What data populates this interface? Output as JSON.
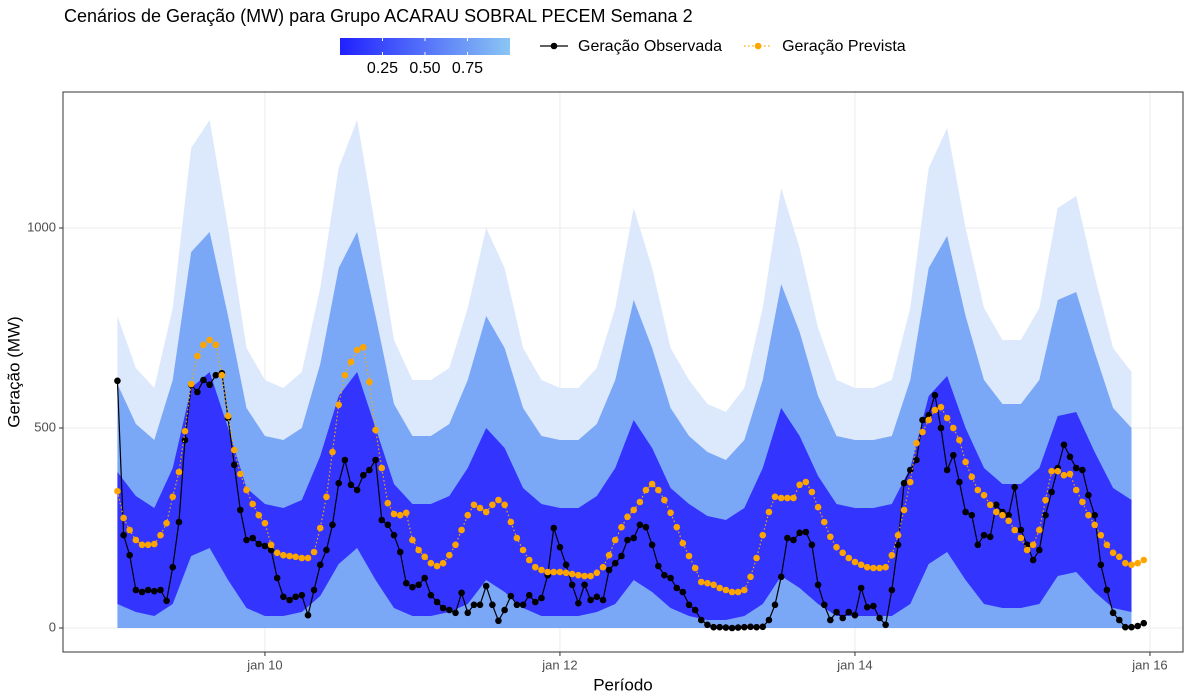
{
  "chart_data": {
    "type": "fan",
    "title": "Cenários de Geração (MW) para Grupo ACARAU SOBRAL PECEM Semana 2",
    "x_label": "Período",
    "y_label": "Geração (MW)",
    "xlim": [
      8.631,
      16.224
    ],
    "ylim": [
      -60,
      1340
    ],
    "xticks": [
      {
        "value": 10,
        "label": "jan 10"
      },
      {
        "value": 12,
        "label": "jan 12"
      },
      {
        "value": 14,
        "label": "jan 14"
      },
      {
        "value": 16,
        "label": "jan 16"
      }
    ],
    "yticks": [
      0,
      500,
      1000
    ],
    "grid": true,
    "colorbar": {
      "colors": [
        "#2020ff",
        "#8ac6f4"
      ],
      "lim": [
        0,
        1
      ],
      "ticks": [
        0.25,
        {
          "value": 0.5,
          "label": "0.50"
        },
        0.75
      ]
    },
    "fan": {
      "x": [
        9,
        9.125,
        9.25,
        9.375,
        9.5,
        9.625,
        9.75,
        9.875,
        10,
        10.125,
        10.25,
        10.375,
        10.5,
        10.625,
        10.75,
        10.875,
        11,
        11.125,
        11.25,
        11.375,
        11.5,
        11.625,
        11.75,
        11.875,
        12,
        12.125,
        12.25,
        12.375,
        12.5,
        12.625,
        12.75,
        12.875,
        13,
        13.125,
        13.25,
        13.375,
        13.5,
        13.625,
        13.75,
        13.875,
        14,
        14.125,
        14.25,
        14.375,
        14.5,
        14.625,
        14.75,
        14.875,
        15,
        15.125,
        15.25,
        15.375,
        15.5,
        15.625,
        15.75,
        15.875
      ],
      "bands": [
        {
          "level": 0.95,
          "color": "#dce8fb",
          "upper": [
            780,
            650,
            600,
            800,
            1200,
            1270,
            1000,
            700,
            620,
            600,
            640,
            850,
            1150,
            1270,
            1000,
            720,
            620,
            620,
            650,
            800,
            1000,
            900,
            700,
            620,
            600,
            600,
            650,
            800,
            1050,
            900,
            700,
            620,
            560,
            540,
            600,
            800,
            1100,
            950,
            750,
            620,
            600,
            600,
            620,
            800,
            1150,
            1250,
            1000,
            800,
            720,
            720,
            800,
            1050,
            1080,
            880,
            700,
            640
          ],
          "lower": [
            0,
            0,
            0,
            0,
            0,
            0,
            0,
            0,
            0,
            0,
            0,
            0,
            0,
            0,
            0,
            0,
            0,
            0,
            0,
            0,
            0,
            0,
            0,
            0,
            0,
            0,
            0,
            0,
            0,
            0,
            0,
            0,
            0,
            0,
            0,
            0,
            0,
            0,
            0,
            0,
            0,
            0,
            0,
            0,
            0,
            0,
            0,
            0,
            0,
            0,
            0,
            0,
            0,
            0,
            0,
            0
          ]
        },
        {
          "level": 0.75,
          "color": "#7aa8f7",
          "upper": [
            610,
            510,
            470,
            620,
            940,
            990,
            780,
            550,
            480,
            470,
            500,
            660,
            900,
            990,
            780,
            560,
            480,
            480,
            510,
            620,
            780,
            700,
            550,
            480,
            470,
            470,
            510,
            620,
            820,
            700,
            550,
            480,
            440,
            420,
            470,
            620,
            860,
            740,
            580,
            480,
            470,
            470,
            480,
            620,
            900,
            980,
            780,
            620,
            560,
            560,
            620,
            820,
            840,
            690,
            550,
            500
          ],
          "lower": [
            0,
            0,
            0,
            0,
            0,
            0,
            0,
            0,
            0,
            0,
            0,
            0,
            0,
            0,
            0,
            0,
            0,
            0,
            0,
            0,
            0,
            0,
            0,
            0,
            0,
            0,
            0,
            0,
            0,
            0,
            0,
            0,
            0,
            0,
            0,
            0,
            0,
            0,
            0,
            0,
            0,
            0,
            0,
            0,
            0,
            0,
            0,
            0,
            0,
            0,
            0,
            0,
            0,
            0,
            0,
            0
          ]
        },
        {
          "level": 0.25,
          "color": "#3434ff",
          "upper": [
            390,
            330,
            300,
            400,
            600,
            640,
            500,
            350,
            310,
            300,
            320,
            430,
            580,
            640,
            500,
            360,
            310,
            310,
            330,
            400,
            500,
            450,
            350,
            310,
            300,
            300,
            330,
            400,
            520,
            450,
            350,
            310,
            280,
            270,
            300,
            400,
            550,
            480,
            380,
            310,
            300,
            300,
            310,
            400,
            580,
            630,
            500,
            400,
            360,
            360,
            400,
            530,
            540,
            440,
            350,
            320
          ],
          "lower": [
            60,
            40,
            30,
            60,
            180,
            200,
            120,
            50,
            30,
            30,
            40,
            80,
            160,
            200,
            120,
            50,
            30,
            30,
            40,
            60,
            120,
            90,
            50,
            30,
            30,
            30,
            40,
            60,
            120,
            90,
            50,
            30,
            20,
            20,
            30,
            60,
            130,
            100,
            60,
            30,
            30,
            30,
            30,
            60,
            160,
            190,
            120,
            60,
            50,
            50,
            60,
            130,
            140,
            90,
            50,
            40
          ]
        }
      ]
    },
    "x": [
      9,
      9.042,
      9.083,
      9.125,
      9.167,
      9.208,
      9.25,
      9.292,
      9.333,
      9.375,
      9.417,
      9.458,
      9.5,
      9.542,
      9.583,
      9.625,
      9.667,
      9.708,
      9.75,
      9.792,
      9.833,
      9.875,
      9.917,
      9.958,
      10,
      10.042,
      10.083,
      10.125,
      10.167,
      10.208,
      10.25,
      10.292,
      10.333,
      10.375,
      10.417,
      10.458,
      10.5,
      10.542,
      10.583,
      10.625,
      10.667,
      10.708,
      10.75,
      10.792,
      10.833,
      10.875,
      10.917,
      10.958,
      11,
      11.042,
      11.083,
      11.125,
      11.167,
      11.208,
      11.25,
      11.292,
      11.333,
      11.375,
      11.417,
      11.458,
      11.5,
      11.542,
      11.583,
      11.625,
      11.667,
      11.708,
      11.75,
      11.792,
      11.833,
      11.875,
      11.917,
      11.958,
      12,
      12.042,
      12.083,
      12.125,
      12.167,
      12.208,
      12.25,
      12.292,
      12.333,
      12.375,
      12.417,
      12.458,
      12.5,
      12.542,
      12.583,
      12.625,
      12.667,
      12.708,
      12.75,
      12.792,
      12.833,
      12.875,
      12.917,
      12.958,
      13,
      13.042,
      13.083,
      13.125,
      13.167,
      13.208,
      13.25,
      13.292,
      13.333,
      13.375,
      13.417,
      13.458,
      13.5,
      13.542,
      13.583,
      13.625,
      13.667,
      13.708,
      13.75,
      13.792,
      13.833,
      13.875,
      13.917,
      13.958,
      14,
      14.042,
      14.083,
      14.125,
      14.167,
      14.208,
      14.25,
      14.292,
      14.333,
      14.375,
      14.417,
      14.458,
      14.5,
      14.542,
      14.583,
      14.625,
      14.667,
      14.708,
      14.75,
      14.792,
      14.833,
      14.875,
      14.917,
      14.958,
      15,
      15.042,
      15.083,
      15.125,
      15.167,
      15.208,
      15.25,
      15.292,
      15.333,
      15.375,
      15.417,
      15.458,
      15.5,
      15.542,
      15.583,
      15.625,
      15.667,
      15.708,
      15.75,
      15.792,
      15.833,
      15.875,
      15.917,
      15.958
    ],
    "series": [
      {
        "name": "Geração Observada",
        "color": "#000000",
        "line_style": "solid",
        "values": [
          618,
          232,
          182,
          95,
          90,
          95,
          92,
          95,
          68,
          152,
          265,
          470,
          608,
          590,
          620,
          608,
          632,
          637,
          525,
          408,
          295,
          220,
          225,
          210,
          205,
          195,
          125,
          78,
          70,
          78,
          82,
          32,
          95,
          158,
          195,
          258,
          362,
          420,
          358,
          345,
          382,
          395,
          420,
          270,
          258,
          232,
          190,
          112,
          102,
          108,
          125,
          82,
          65,
          50,
          45,
          38,
          88,
          38,
          58,
          58,
          105,
          58,
          18,
          45,
          80,
          58,
          58,
          82,
          65,
          75,
          132,
          250,
          202,
          158,
          108,
          62,
          108,
          70,
          78,
          70,
          145,
          162,
          180,
          220,
          225,
          258,
          252,
          208,
          155,
          132,
          125,
          100,
          90,
          58,
          45,
          20,
          8,
          2,
          2,
          1,
          0,
          1,
          2,
          3,
          2,
          3,
          20,
          58,
          128,
          225,
          220,
          238,
          240,
          208,
          108,
          58,
          20,
          40,
          25,
          40,
          32,
          100,
          52,
          55,
          25,
          8,
          95,
          208,
          362,
          395,
          420,
          520,
          532,
          582,
          500,
          395,
          432,
          365,
          290,
          282,
          208,
          232,
          228,
          308,
          290,
          282,
          352,
          245,
          208,
          170,
          195,
          282,
          340,
          400,
          458,
          428,
          400,
          395,
          332,
          282,
          158,
          95,
          38,
          20,
          2,
          2,
          5,
          12
        ]
      },
      {
        "name": "Geração Prevista",
        "color": "#ffa500",
        "line_style": "dotted",
        "values": [
          342,
          275,
          245,
          220,
          208,
          208,
          210,
          232,
          262,
          328,
          390,
          492,
          610,
          680,
          708,
          720,
          708,
          632,
          530,
          445,
          385,
          345,
          310,
          282,
          262,
          208,
          188,
          182,
          180,
          178,
          175,
          175,
          190,
          250,
          328,
          440,
          558,
          632,
          665,
          695,
          702,
          615,
          495,
          400,
          312,
          285,
          282,
          288,
          220,
          195,
          178,
          162,
          155,
          162,
          182,
          208,
          245,
          282,
          308,
          300,
          290,
          308,
          320,
          308,
          265,
          225,
          195,
          170,
          152,
          145,
          140,
          140,
          140,
          138,
          135,
          132,
          130,
          130,
          138,
          152,
          182,
          220,
          252,
          278,
          295,
          315,
          345,
          360,
          345,
          320,
          288,
          252,
          212,
          180,
          150,
          115,
          112,
          108,
          100,
          95,
          90,
          90,
          95,
          128,
          175,
          232,
          290,
          328,
          325,
          325,
          325,
          358,
          365,
          340,
          302,
          265,
          228,
          202,
          188,
          175,
          165,
          158,
          152,
          150,
          150,
          152,
          182,
          232,
          295,
          365,
          462,
          490,
          520,
          545,
          552,
          525,
          500,
          470,
          415,
          378,
          345,
          332,
          308,
          290,
          282,
          268,
          245,
          225,
          195,
          208,
          245,
          320,
          392,
          392,
          382,
          385,
          345,
          315,
          282,
          258,
          232,
          208,
          188,
          178,
          162,
          158,
          162,
          170
        ]
      }
    ]
  }
}
